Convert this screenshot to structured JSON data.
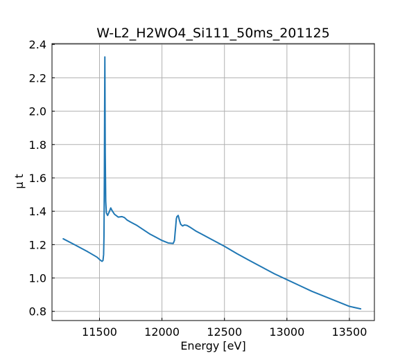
{
  "chart_data": {
    "type": "line",
    "title": "W-L2_H2WO4_Si111_50ms_201125",
    "xlabel": "Energy [eV]",
    "ylabel": "μ t",
    "xlim": [
      11120,
      13700
    ],
    "ylim": [
      0.745,
      2.405
    ],
    "xticks": [
      11500,
      12000,
      12500,
      13000,
      13500
    ],
    "xtick_labels": [
      "11500",
      "12000",
      "12500",
      "13000",
      "13500"
    ],
    "yticks": [
      0.8,
      1.0,
      1.2,
      1.4,
      1.6,
      1.8,
      2.0,
      2.2,
      2.4
    ],
    "ytick_labels": [
      "0.8",
      "1.0",
      "1.2",
      "1.4",
      "1.6",
      "1.8",
      "2.0",
      "2.2",
      "2.4"
    ],
    "grid": true,
    "series": [
      {
        "color": "#1f77b4",
        "x": [
          11210,
          11300,
          11400,
          11480,
          11505,
          11520,
          11528,
          11533,
          11536,
          11539,
          11541,
          11543,
          11546,
          11550,
          11555,
          11565,
          11580,
          11590,
          11600,
          11620,
          11650,
          11680,
          11700,
          11720,
          11750,
          11800,
          11850,
          11900,
          11950,
          12000,
          12050,
          12090,
          12100,
          12105,
          12110,
          12115,
          12120,
          12130,
          12140,
          12150,
          12165,
          12180,
          12200,
          12230,
          12270,
          12320,
          12400,
          12500,
          12600,
          12700,
          12800,
          12900,
          13000,
          13100,
          13200,
          13300,
          13400,
          13500,
          13590
        ],
        "y": [
          1.235,
          1.2,
          1.16,
          1.125,
          1.108,
          1.1,
          1.105,
          1.14,
          1.25,
          1.6,
          2.0,
          2.325,
          1.75,
          1.46,
          1.39,
          1.375,
          1.4,
          1.42,
          1.405,
          1.382,
          1.365,
          1.368,
          1.362,
          1.348,
          1.335,
          1.315,
          1.29,
          1.265,
          1.245,
          1.225,
          1.21,
          1.207,
          1.225,
          1.27,
          1.31,
          1.355,
          1.368,
          1.375,
          1.345,
          1.322,
          1.312,
          1.318,
          1.315,
          1.302,
          1.282,
          1.262,
          1.23,
          1.19,
          1.146,
          1.105,
          1.065,
          1.025,
          0.99,
          0.955,
          0.92,
          0.89,
          0.86,
          0.83,
          0.815
        ]
      }
    ]
  }
}
